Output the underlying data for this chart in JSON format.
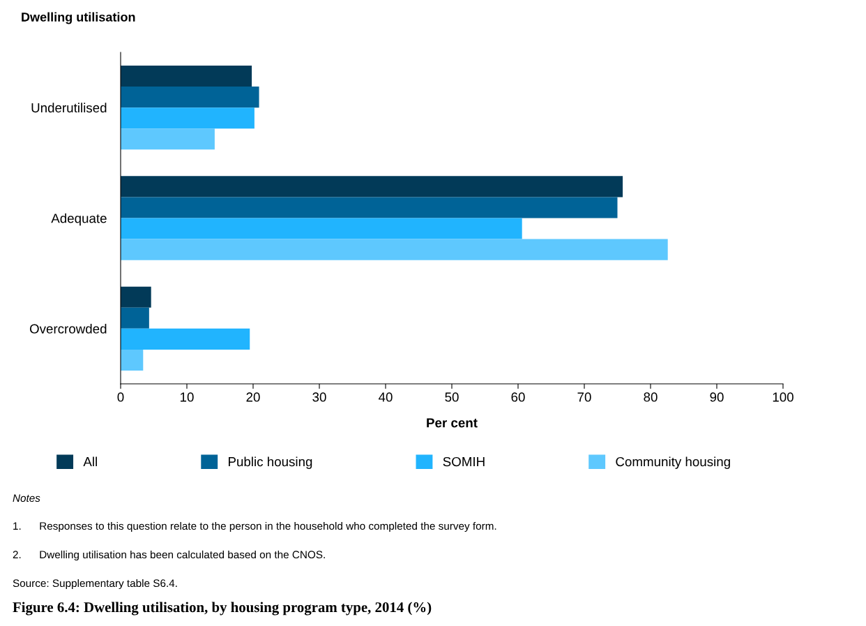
{
  "chart_data": {
    "type": "bar",
    "orientation": "horizontal",
    "title": "Figure 6.4: Dwelling utilisation, by housing program type, 2014 (%)",
    "subtitle": "Dwelling utilisation",
    "xlabel": "Per cent",
    "categories": [
      "Underutilised",
      "Adequate",
      "Overcrowded"
    ],
    "series": [
      {
        "name": "All",
        "color": "#023a58",
        "values": [
          19.8,
          75.8,
          4.6
        ]
      },
      {
        "name": "Public housing",
        "color": "#006397",
        "values": [
          20.9,
          75.0,
          4.3
        ]
      },
      {
        "name": "SOMIH",
        "color": "#21b4fe",
        "values": [
          20.2,
          60.6,
          19.5
        ]
      },
      {
        "name": "Community housing",
        "color": "#5ec8fe",
        "values": [
          14.2,
          82.6,
          3.4
        ]
      }
    ],
    "xlim": [
      0,
      100
    ],
    "xticks": [
      0,
      10,
      20,
      30,
      40,
      50,
      60,
      70,
      80,
      90,
      100
    ],
    "grid": false,
    "legend": "bottom",
    "annotations": [
      "Notes",
      "1.      Responses to this question relate to the person in the household who completed the survey form.",
      "2.      Dwelling utilisation has been calculated based on the CNOS.",
      "Source: Supplementary table S6.4."
    ]
  }
}
